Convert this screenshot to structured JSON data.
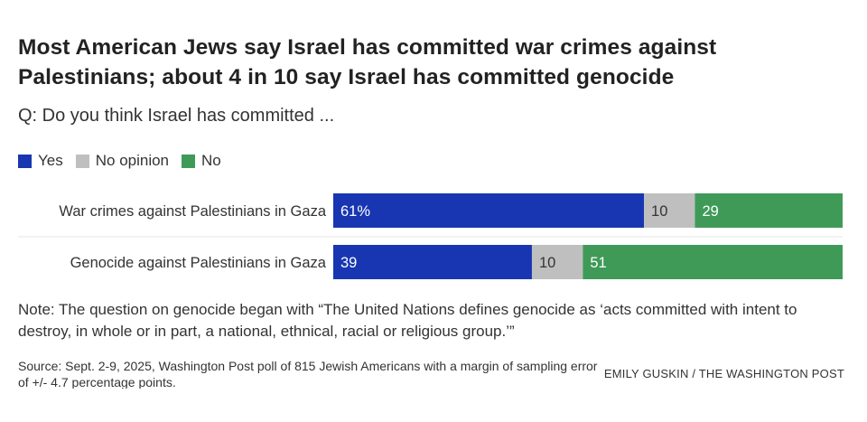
{
  "title": "Most American Jews say Israel has committed war crimes against Palestinians; about 4 in 10 say Israel has committed genocide",
  "subtitle": "Q: Do you think Israel has committed ...",
  "colors": {
    "yes": "#1836b2",
    "no_opinion": "#bfbfbf",
    "no": "#3f9a58"
  },
  "chart_data": {
    "type": "bar",
    "orientation": "horizontal",
    "stacked": true,
    "categories": [
      "War crimes against Palestinians in Gaza",
      "Genocide against Palestinians in Gaza"
    ],
    "series": [
      {
        "name": "Yes",
        "values": [
          61,
          39
        ],
        "labels": [
          "61%",
          "39"
        ]
      },
      {
        "name": "No opinion",
        "values": [
          10,
          10
        ],
        "labels": [
          "10",
          "10"
        ]
      },
      {
        "name": "No",
        "values": [
          29,
          51
        ],
        "labels": [
          "29",
          "51"
        ]
      }
    ],
    "xlim": [
      0,
      100
    ],
    "legend_position": "top-left"
  },
  "note": "Note: The question on genocide began with “The United Nations defines genocide as ‘acts committed with intent to destroy, in whole or in part, a national, ethnical, racial or religious group.’”",
  "source": "Source: Sept. 2-9, 2025, Washington Post poll of 815 Jewish Americans with a margin of sampling error of +/- 4.7 percentage points.",
  "credit": "EMILY GUSKIN / THE WASHINGTON POST"
}
